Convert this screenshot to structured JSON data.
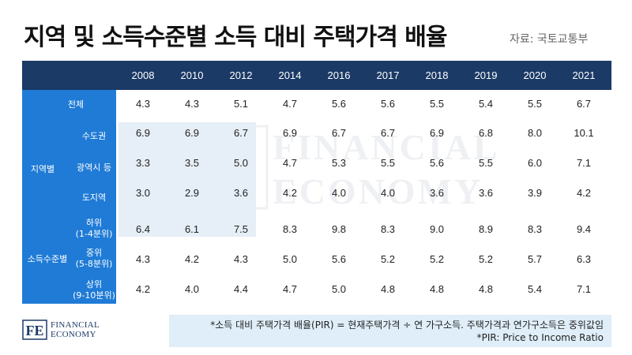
{
  "title": "지역 및 소득수준별 소득 대비 주택가격 배율",
  "source": "자료: 국토교통부",
  "years": [
    "2008",
    "2010",
    "2012",
    "2014",
    "2016",
    "2017",
    "2018",
    "2019",
    "2020",
    "2021"
  ],
  "groups": {
    "region": "지역별",
    "income": "소득수준별"
  },
  "rows": [
    {
      "label": "전체",
      "values": [
        "4.3",
        "4.3",
        "5.1",
        "4.7",
        "5.6",
        "5.6",
        "5.5",
        "5.4",
        "5.5",
        "6.7"
      ]
    },
    {
      "label": "수도권",
      "values": [
        "6.9",
        "6.9",
        "6.7",
        "6.9",
        "6.7",
        "6.7",
        "6.9",
        "6.8",
        "8.0",
        "10.1"
      ]
    },
    {
      "label": "광역시 등",
      "values": [
        "3.3",
        "3.5",
        "5.0",
        "4.7",
        "5.3",
        "5.5",
        "5.6",
        "5.5",
        "6.0",
        "7.1"
      ]
    },
    {
      "label": "도지역",
      "values": [
        "3.0",
        "2.9",
        "3.6",
        "4.2",
        "4.0",
        "4.0",
        "3.6",
        "3.6",
        "3.9",
        "4.2"
      ]
    },
    {
      "label": "하위",
      "sublabel": "(1-4분위)",
      "values": [
        "6.4",
        "6.1",
        "7.5",
        "8.3",
        "9.8",
        "8.3",
        "9.0",
        "8.9",
        "8.3",
        "9.4"
      ]
    },
    {
      "label": "중위",
      "sublabel": "(5-8분위)",
      "values": [
        "4.3",
        "4.2",
        "4.3",
        "5.0",
        "5.6",
        "5.2",
        "5.2",
        "5.2",
        "5.7",
        "6.3"
      ]
    },
    {
      "label": "상위",
      "sublabel": "(9-10분위)",
      "values": [
        "4.2",
        "4.0",
        "4.4",
        "4.7",
        "5.0",
        "4.8",
        "4.8",
        "4.8",
        "5.4",
        "7.1"
      ]
    }
  ],
  "watermark": {
    "line1": "FINANCIAL",
    "line2": "ECONOMY",
    "mark": "FE"
  },
  "footer": {
    "brand_line1": "FINANCIAL",
    "brand_line2": "ECONOMY",
    "mark": "FE"
  },
  "notes": {
    "line1": "*소득 대비 주택가격 배율(PIR) = 현재주택가격 ÷ 연 가구소득. 주택가격과 연가구소득은 중위값임",
    "line2": "*PIR: Price to Income Ratio"
  },
  "colors": {
    "header": "#1b3a66",
    "label_column": "#1f7bd6",
    "note_bg": "#dfeef8"
  }
}
